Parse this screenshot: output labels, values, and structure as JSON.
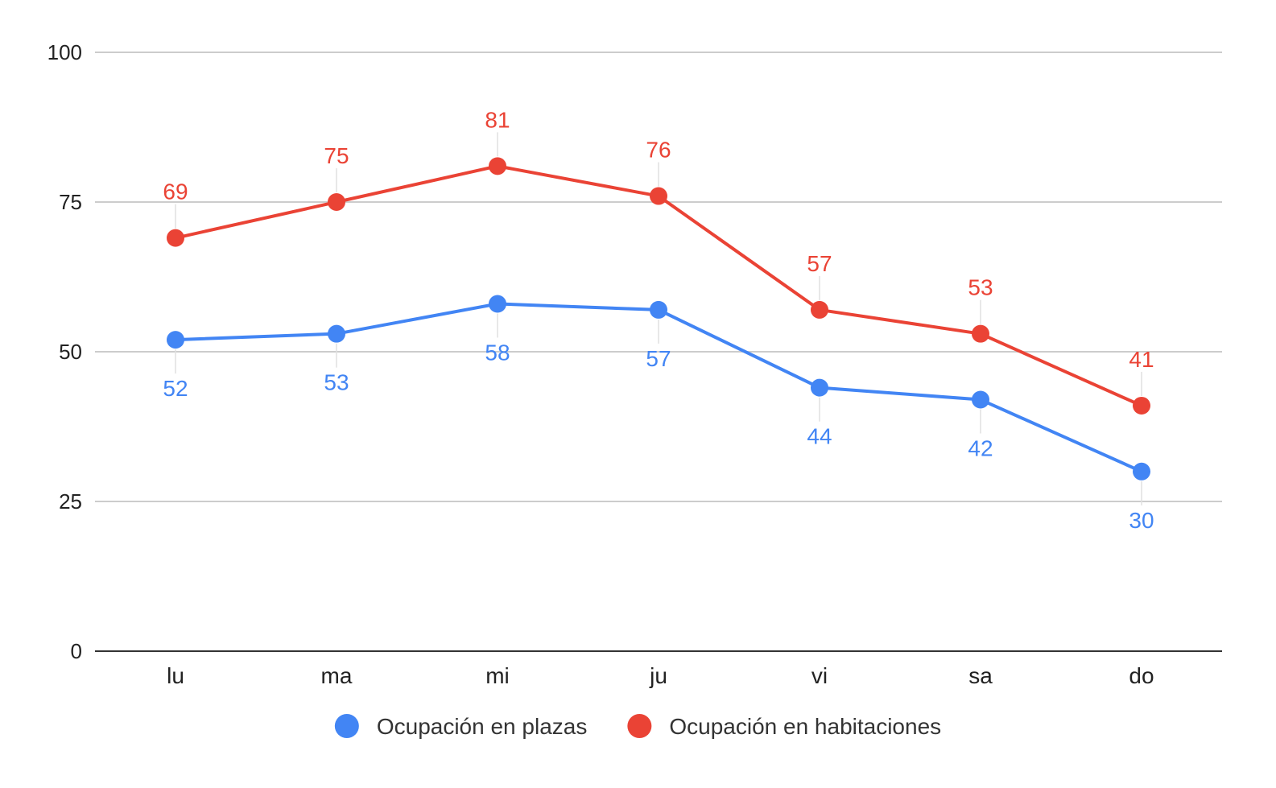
{
  "chart_data": {
    "type": "line",
    "title": "",
    "xlabel": "",
    "ylabel": "",
    "categories": [
      "lu",
      "ma",
      "mi",
      "ju",
      "vi",
      "sa",
      "do"
    ],
    "ylim": [
      0,
      100
    ],
    "yticks": [
      0,
      25,
      50,
      75,
      100
    ],
    "grid": true,
    "legend_position": "bottom",
    "data_labels": true,
    "series": [
      {
        "name": "Ocupación en plazas",
        "color": "#4285f4",
        "label_position": "below",
        "values": [
          52,
          53,
          58,
          57,
          44,
          42,
          30
        ]
      },
      {
        "name": "Ocupación en habitaciones",
        "color": "#ea4335",
        "label_position": "above",
        "values": [
          69,
          75,
          81,
          76,
          57,
          53,
          41
        ]
      }
    ]
  }
}
